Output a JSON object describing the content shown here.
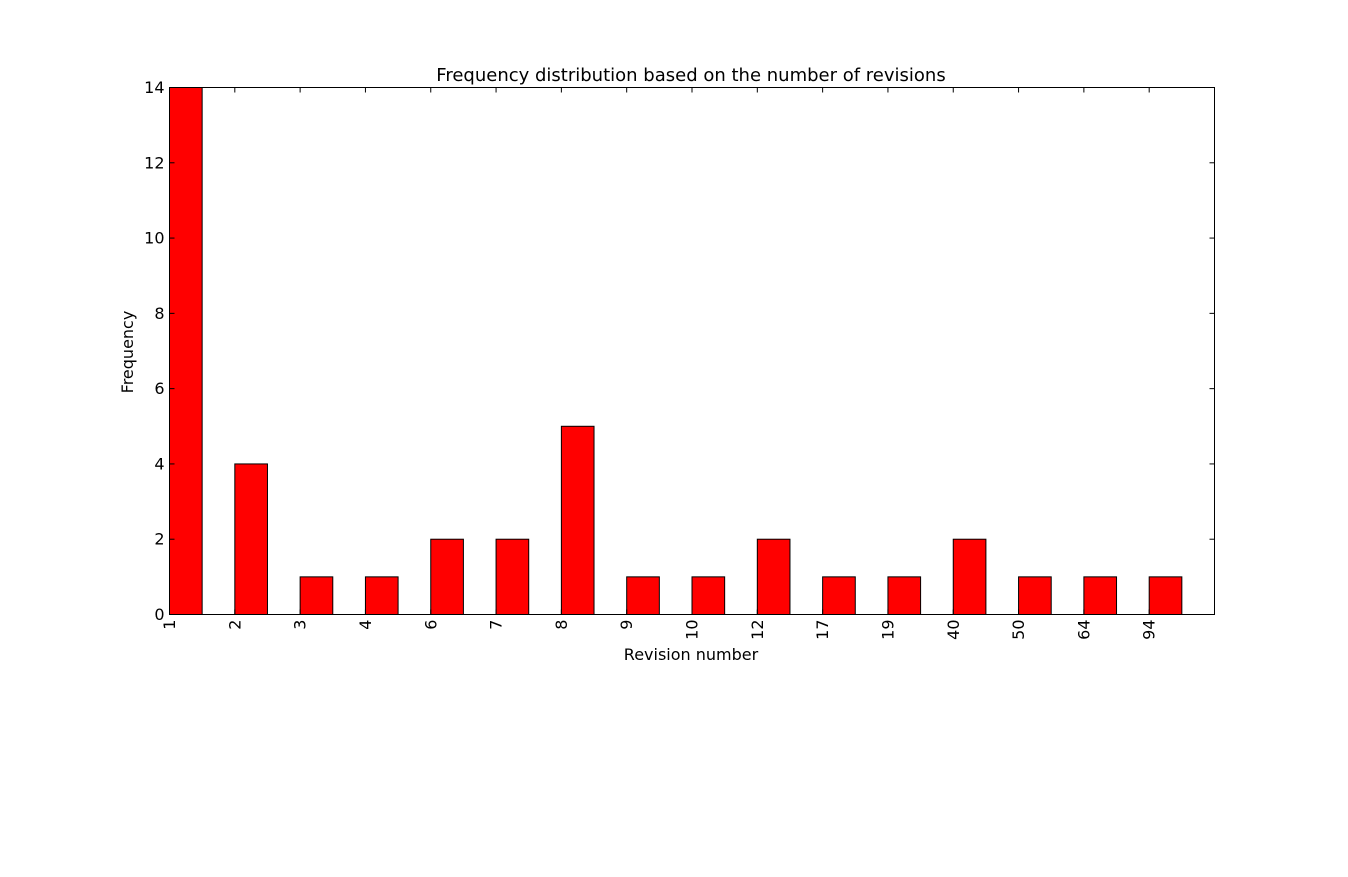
{
  "chart_data": {
    "type": "bar",
    "title": "Frequency distribution based on the number of revisions",
    "xlabel": "Revision number",
    "ylabel": "Frequency",
    "categories": [
      "1",
      "2",
      "3",
      "4",
      "6",
      "7",
      "8",
      "9",
      "10",
      "12",
      "17",
      "19",
      "40",
      "50",
      "64",
      "94"
    ],
    "values": [
      14,
      4,
      1,
      1,
      2,
      2,
      5,
      1,
      1,
      2,
      1,
      1,
      2,
      1,
      1,
      1
    ],
    "ylim": [
      0,
      14
    ],
    "yticks": [
      "0",
      "2",
      "4",
      "6",
      "8",
      "10",
      "12",
      "14"
    ],
    "grid": false,
    "legend": "none",
    "bar_color": "#ff0000",
    "edge_color": "#000000"
  }
}
